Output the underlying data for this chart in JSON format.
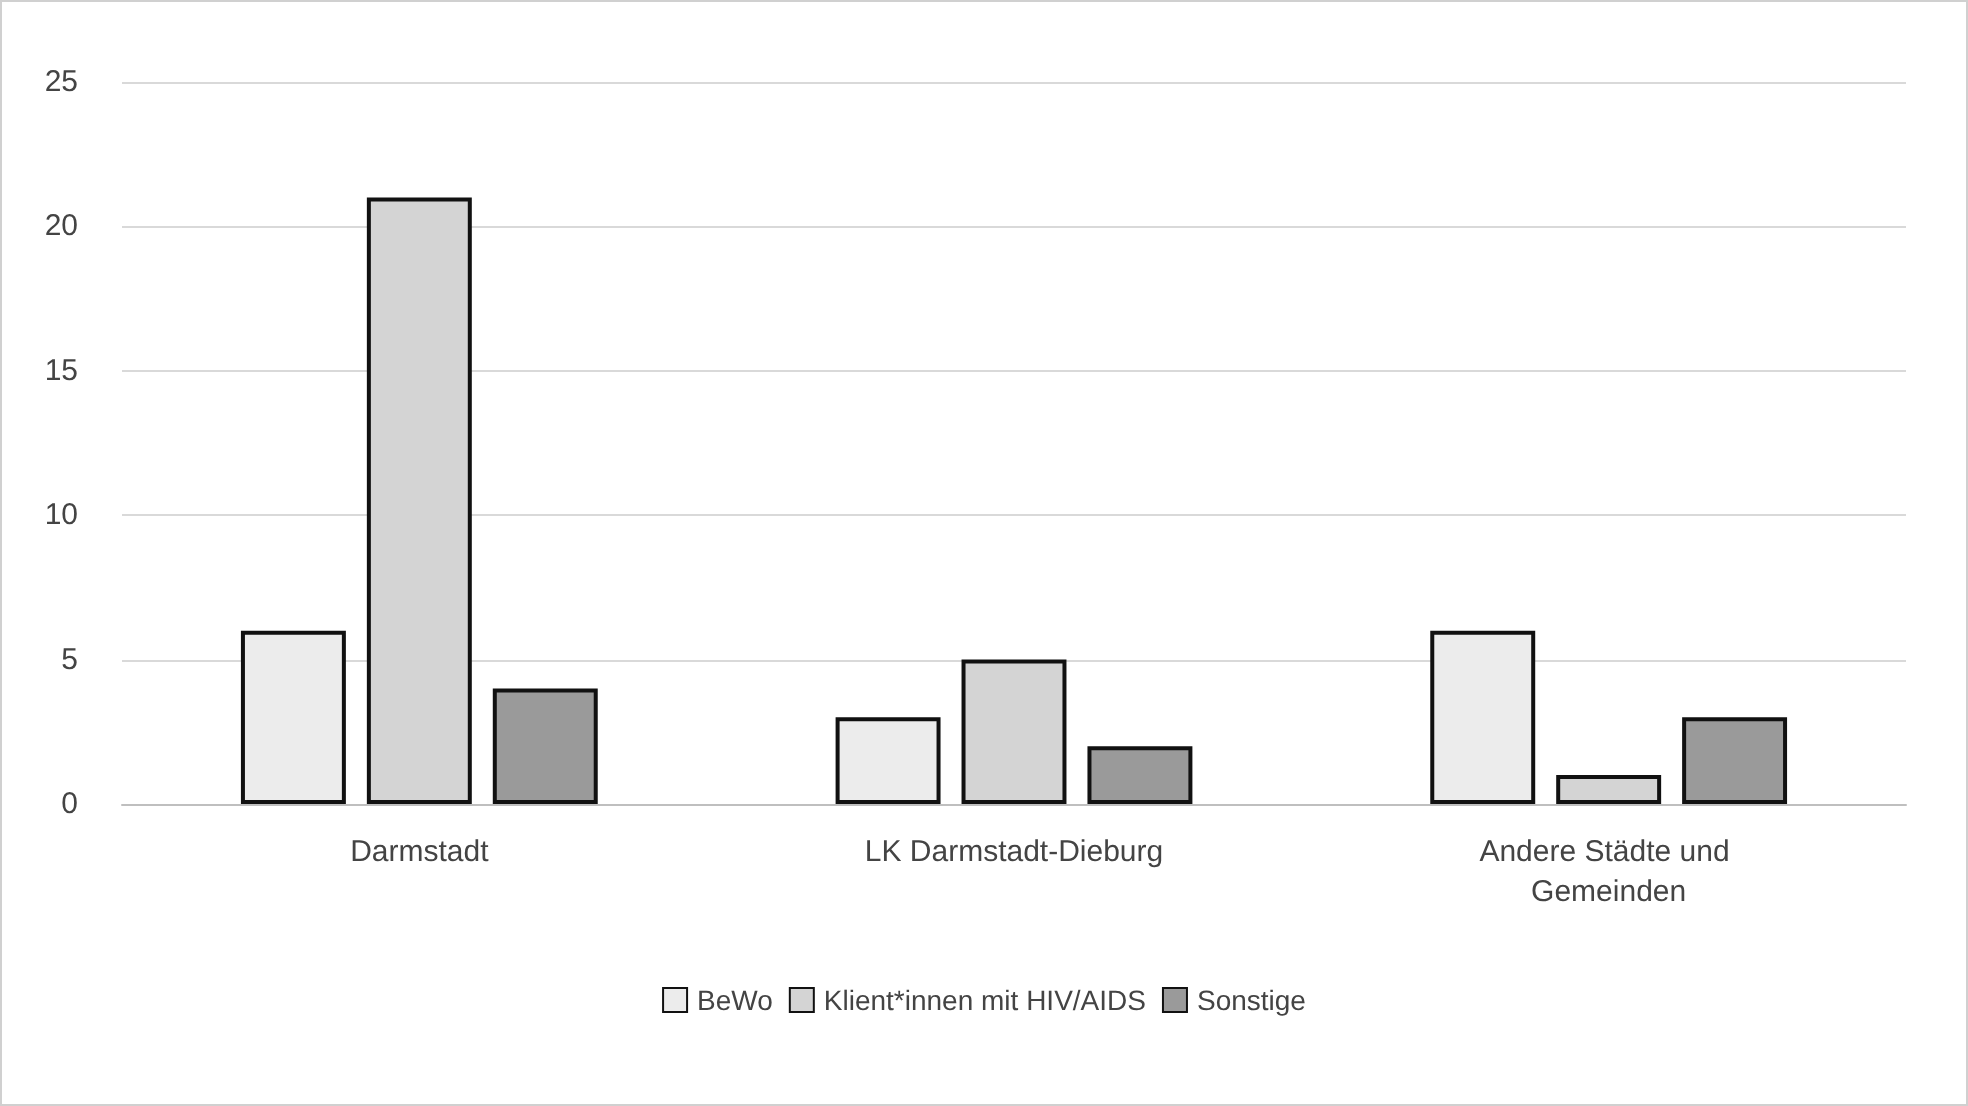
{
  "chart_data": {
    "type": "bar",
    "categories": [
      "Darmstadt",
      "LK Darmstadt-Dieburg",
      "Andere Städte und Gemeinden"
    ],
    "series": [
      {
        "name": "BeWo",
        "color": "#ececec",
        "values": [
          6,
          3,
          6
        ]
      },
      {
        "name": "Klient*innen mit HIV/AIDS",
        "color": "#d4d4d4",
        "values": [
          21,
          5,
          1
        ]
      },
      {
        "name": "Sonstige",
        "color": "#9a9a9a",
        "values": [
          4,
          2,
          3
        ]
      }
    ],
    "ylim": [
      0,
      25
    ],
    "yticks": [
      0,
      5,
      10,
      15,
      20,
      25
    ],
    "grid": "y",
    "legend": "bottom"
  }
}
